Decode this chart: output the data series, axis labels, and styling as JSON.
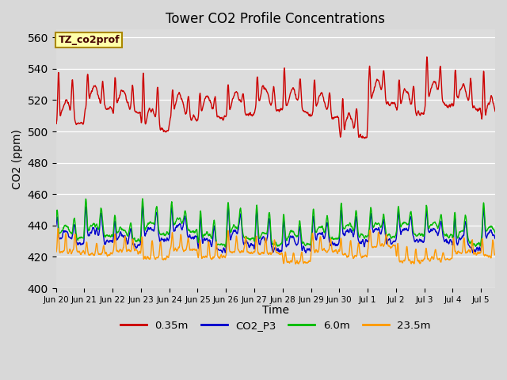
{
  "title": "Tower CO2 Profile Concentrations",
  "xlabel": "Time",
  "ylabel": "CO2 (ppm)",
  "ylim": [
    400,
    565
  ],
  "yticks": [
    400,
    420,
    440,
    460,
    480,
    500,
    520,
    540,
    560
  ],
  "fig_bg": "#d8d8d8",
  "plot_bg": "#dcdcdc",
  "series": {
    "0.35m": {
      "color": "#cc0000",
      "lw": 1.0
    },
    "CO2_P3": {
      "color": "#0000cc",
      "lw": 1.0
    },
    "6.0m": {
      "color": "#00bb00",
      "lw": 1.0
    },
    "23.5m": {
      "color": "#ff9900",
      "lw": 1.0
    }
  },
  "xtick_labels": [
    "Jun 20",
    "Jun 21",
    "Jun 22",
    "Jun 23",
    "Jun 24",
    "Jun 25",
    "Jun 26",
    "Jun 27",
    "Jun 28",
    "Jun 29",
    "Jun 30",
    "Jul 1",
    "Jul 2",
    "Jul 3",
    "Jul 4",
    "Jul 5"
  ],
  "n_days": 15.5,
  "seed": 42
}
